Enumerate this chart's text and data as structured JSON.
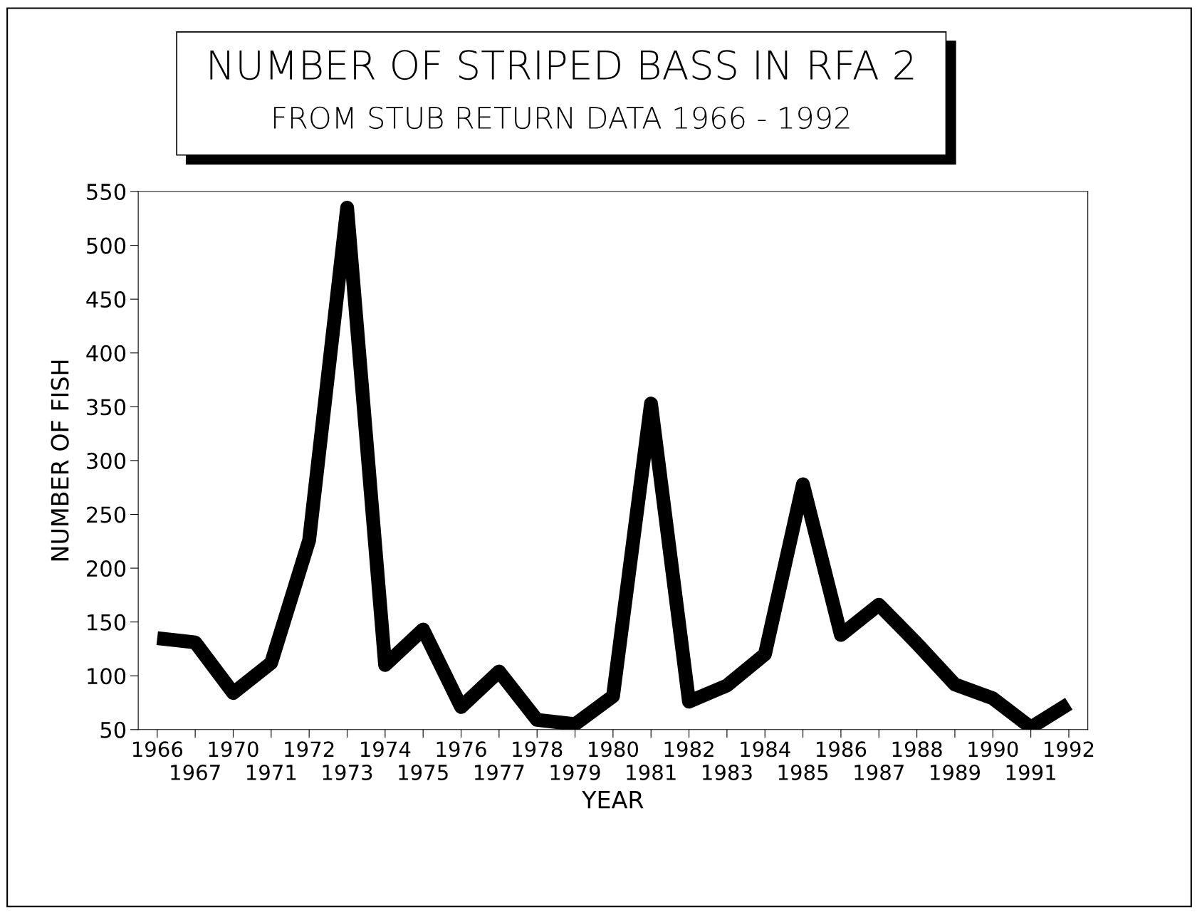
{
  "chart_data": {
    "type": "line",
    "title": "NUMBER OF STRIPED BASS IN RFA 2",
    "subtitle": "FROM STUB RETURN DATA 1966 - 1992",
    "xlabel": "YEAR",
    "ylabel": "NUMBER OF FISH",
    "categories": [
      "1966",
      "1967",
      "1970",
      "1971",
      "1972",
      "1973",
      "1974",
      "1975",
      "1976",
      "1977",
      "1978",
      "1979",
      "1980",
      "1981",
      "1982",
      "1983",
      "1984",
      "1985",
      "1986",
      "1987",
      "1988",
      "1989",
      "1990",
      "1991",
      "1992"
    ],
    "series": [
      {
        "color": "#000000",
        "values": [
          135,
          131,
          84,
          112,
          226,
          535,
          110,
          143,
          71,
          104,
          59,
          55,
          81,
          353,
          76,
          91,
          120,
          278,
          138,
          166,
          130,
          92,
          79,
          52,
          74
        ]
      }
    ],
    "ylim": [
      50,
      550
    ],
    "yticks": [
      50,
      100,
      150,
      200,
      250,
      300,
      350,
      400,
      450,
      500,
      550
    ],
    "grid": false,
    "legend": false,
    "marker": "none",
    "line_style": "solid"
  }
}
